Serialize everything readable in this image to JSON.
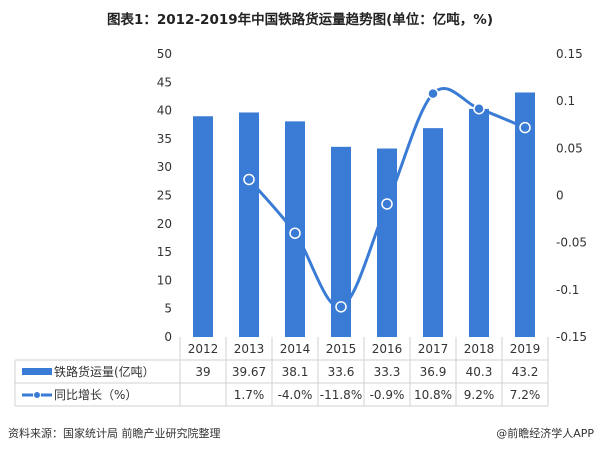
{
  "title": "图表1：2012-2019年中国铁路货运量趋势图(单位：亿吨，%)",
  "source": "资料来源：国家统计局 前瞻产业研究院整理",
  "credit": "@前瞻经济学人APP",
  "chart_data": {
    "type": "bar+line",
    "categories": [
      "2012",
      "2013",
      "2014",
      "2015",
      "2016",
      "2017",
      "2018",
      "2019"
    ],
    "series": [
      {
        "name": "铁路货运量(亿吨）",
        "type": "bar",
        "axis": "left",
        "values": [
          39,
          39.67,
          38.1,
          33.6,
          33.3,
          36.9,
          40.3,
          43.2
        ],
        "labels": [
          "39",
          "39.67",
          "38.1",
          "33.6",
          "33.3",
          "36.9",
          "40.3",
          "43.2"
        ],
        "color": "#3a7bd5"
      },
      {
        "name": "同比增长（%）",
        "type": "line",
        "axis": "right",
        "values": [
          null,
          0.017,
          -0.04,
          -0.118,
          -0.009,
          0.108,
          0.092,
          0.072
        ],
        "labels": [
          "",
          "1.7%",
          "-4.0%",
          "-11.8%",
          "-0.9%",
          "10.8%",
          "9.2%",
          "7.2%"
        ],
        "color": "#3a7bd5"
      }
    ],
    "left_axis": {
      "ylim": [
        0,
        50
      ],
      "ticks": [
        "0",
        "5",
        "10",
        "15",
        "20",
        "25",
        "30",
        "35",
        "40",
        "45",
        "50"
      ]
    },
    "right_axis": {
      "ylim": [
        -0.15,
        0.15
      ],
      "ticks": [
        "-0.15",
        "-0.1",
        "-0.05",
        "0",
        "0.05",
        "0.1",
        "0.15"
      ]
    },
    "grid": false,
    "legend": "data-table"
  }
}
